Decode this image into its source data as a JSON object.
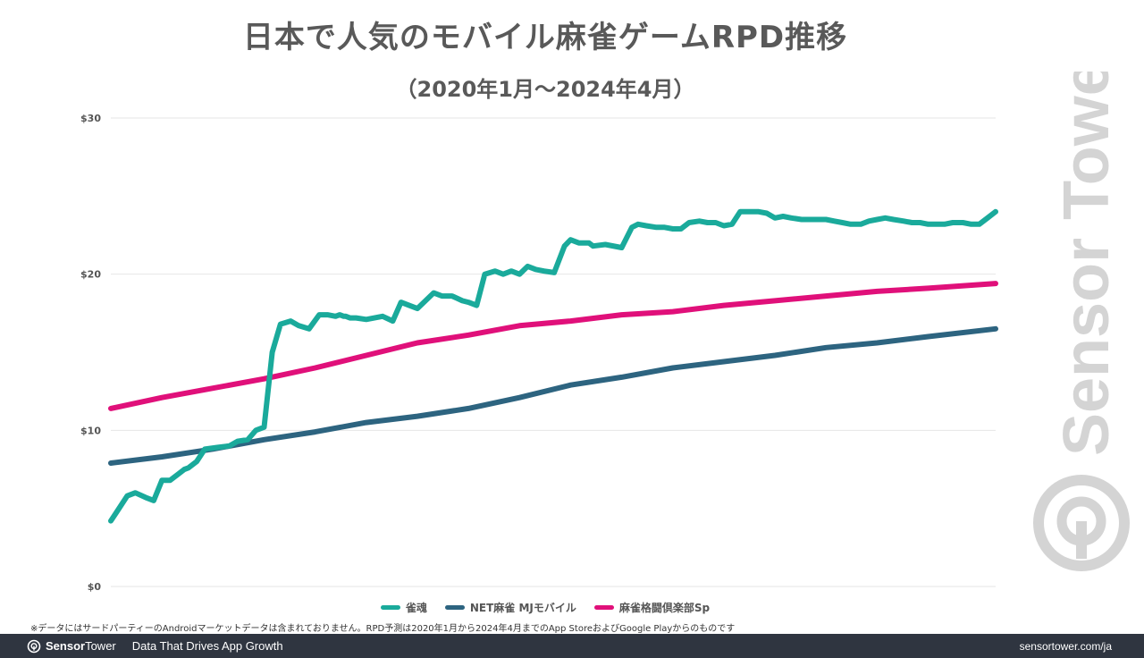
{
  "chart_data": {
    "type": "line",
    "title": "日本で人気のモバイル麻雀ゲームRPD推移",
    "subtitle": "（2020年1月～2024年4月）",
    "xlabel": "",
    "ylabel": "",
    "ylim": [
      0,
      30
    ],
    "yticks": [
      "$0",
      "$10",
      "$20",
      "$30"
    ],
    "ytick_values": [
      0,
      10,
      20,
      30
    ],
    "x_range": [
      2020.0,
      2024.33
    ],
    "grid": true,
    "legend_position": "bottom",
    "series": [
      {
        "name": "雀魂",
        "color": "#1aaa9b",
        "x": [
          2020.0,
          2020.03,
          2020.08,
          2020.12,
          2020.17,
          2020.21,
          2020.25,
          2020.29,
          2020.33,
          2020.36,
          2020.38,
          2020.42,
          2020.46,
          2020.52,
          2020.58,
          2020.62,
          2020.67,
          2020.71,
          2020.75,
          2020.79,
          2020.83,
          2020.88,
          2020.92,
          2020.97,
          2021.02,
          2021.06,
          2021.1,
          2021.12,
          2021.14,
          2021.15,
          2021.17,
          2021.2,
          2021.25,
          2021.33,
          2021.38,
          2021.42,
          2021.46,
          2021.5,
          2021.58,
          2021.62,
          2021.67,
          2021.72,
          2021.75,
          2021.79,
          2021.83,
          2021.88,
          2021.92,
          2021.96,
          2022.0,
          2022.04,
          2022.08,
          2022.12,
          2022.17,
          2022.22,
          2022.25,
          2022.29,
          2022.34,
          2022.36,
          2022.42,
          2022.5,
          2022.55,
          2022.58,
          2022.62,
          2022.67,
          2022.71,
          2022.75,
          2022.79,
          2022.83,
          2022.88,
          2022.92,
          2022.96,
          2023.0,
          2023.04,
          2023.08,
          2023.12,
          2023.17,
          2023.21,
          2023.25,
          2023.29,
          2023.33,
          2023.38,
          2023.42,
          2023.46,
          2023.5,
          2023.54,
          2023.58,
          2023.62,
          2023.67,
          2023.71,
          2023.75,
          2023.79,
          2023.83,
          2023.88,
          2023.92,
          2023.96,
          2024.0,
          2024.04,
          2024.08,
          2024.12,
          2024.17,
          2024.21,
          2024.25,
          2024.29,
          2024.33
        ],
        "values": [
          4.2,
          4.8,
          5.8,
          6.0,
          5.7,
          5.5,
          6.8,
          6.8,
          7.2,
          7.5,
          7.6,
          8.0,
          8.8,
          8.9,
          9.0,
          9.3,
          9.4,
          10.0,
          10.2,
          15.0,
          16.8,
          17.0,
          16.7,
          16.5,
          17.4,
          17.4,
          17.3,
          17.4,
          17.3,
          17.3,
          17.2,
          17.2,
          17.1,
          17.3,
          17.0,
          18.2,
          18.0,
          17.8,
          18.8,
          18.6,
          18.6,
          18.3,
          18.2,
          18.0,
          20.0,
          20.2,
          20.0,
          20.2,
          20.0,
          20.5,
          20.3,
          20.2,
          20.1,
          21.8,
          22.2,
          22.0,
          22.0,
          21.8,
          21.9,
          21.7,
          23.0,
          23.2,
          23.1,
          23.0,
          23.0,
          22.9,
          22.9,
          23.3,
          23.4,
          23.3,
          23.3,
          23.1,
          23.2,
          24.0,
          24.0,
          24.0,
          23.9,
          23.6,
          23.7,
          23.6,
          23.5,
          23.5,
          23.5,
          23.5,
          23.4,
          23.3,
          23.2,
          23.2,
          23.4,
          23.5,
          23.6,
          23.5,
          23.4,
          23.3,
          23.3,
          23.2,
          23.2,
          23.2,
          23.3,
          23.3,
          23.2,
          23.2,
          23.6,
          24.0
        ]
      },
      {
        "name": "NET麻雀 MJモバイル",
        "color": "#2d6480",
        "x": [
          2020.0,
          2020.25,
          2020.5,
          2020.75,
          2021.0,
          2021.25,
          2021.5,
          2021.75,
          2022.0,
          2022.25,
          2022.5,
          2022.75,
          2023.0,
          2023.25,
          2023.5,
          2023.75,
          2024.0,
          2024.33
        ],
        "values": [
          7.9,
          8.3,
          8.8,
          9.4,
          9.9,
          10.5,
          10.9,
          11.4,
          12.1,
          12.9,
          13.4,
          14.0,
          14.4,
          14.8,
          15.3,
          15.6,
          16.0,
          16.5
        ]
      },
      {
        "name": "麻雀格闘倶楽部Sp",
        "color": "#e0107a",
        "x": [
          2020.0,
          2020.25,
          2020.5,
          2020.75,
          2021.0,
          2021.25,
          2021.5,
          2021.75,
          2022.0,
          2022.25,
          2022.5,
          2022.75,
          2023.0,
          2023.25,
          2023.5,
          2023.75,
          2024.0,
          2024.33
        ],
        "values": [
          11.4,
          12.1,
          12.7,
          13.3,
          14.0,
          14.8,
          15.6,
          16.1,
          16.7,
          17.0,
          17.4,
          17.6,
          18.0,
          18.3,
          18.6,
          18.9,
          19.1,
          19.4
        ]
      }
    ]
  },
  "note": "※データにはサードパーティーのAndroidマーケットデータは含まれておりません。RPD予測は2020年1月から2024年4月までのApp StoreおよびGoogle Playからのものです",
  "watermark": {
    "brand": "Sensor Tower"
  },
  "footer": {
    "brand_a": "Sensor",
    "brand_b": "Tower",
    "tagline": "Data That Drives App Growth",
    "url": "sensortower.com/ja"
  },
  "colors": {
    "footer_bg": "#2f3540",
    "grid": "#e6e6e6",
    "watermark": "#d4d4d4"
  }
}
